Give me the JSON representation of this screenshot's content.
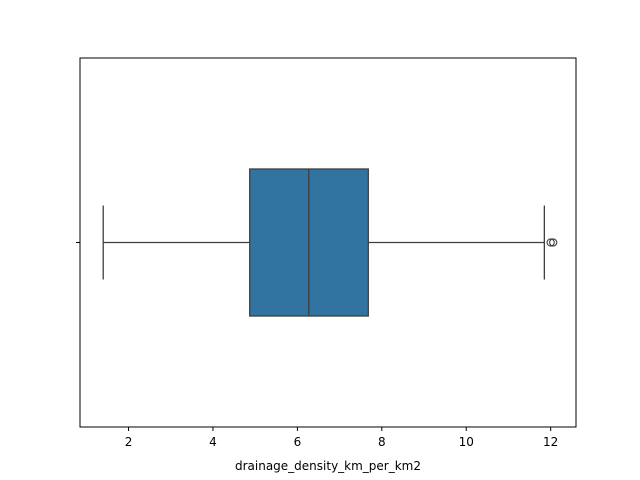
{
  "chart_data": {
    "type": "box",
    "orientation": "horizontal",
    "title": "",
    "xlabel": "drainage_density_km_per_km2",
    "ylabel": "",
    "xlim": [
      0.85,
      12.6
    ],
    "xticks": [
      2,
      4,
      6,
      8,
      10,
      12
    ],
    "xtick_labels": [
      "2",
      "4",
      "6",
      "8",
      "10",
      "12"
    ],
    "grid": false,
    "legend": false,
    "box": {
      "whisker_low": 1.4,
      "q1": 4.87,
      "median": 6.27,
      "q3": 7.68,
      "whisker_high": 11.85,
      "outliers": [
        12.0,
        12.06
      ]
    }
  },
  "colors": {
    "box_fill": "#3274a1",
    "line": "#3f3f3f",
    "frame": "#000000"
  }
}
